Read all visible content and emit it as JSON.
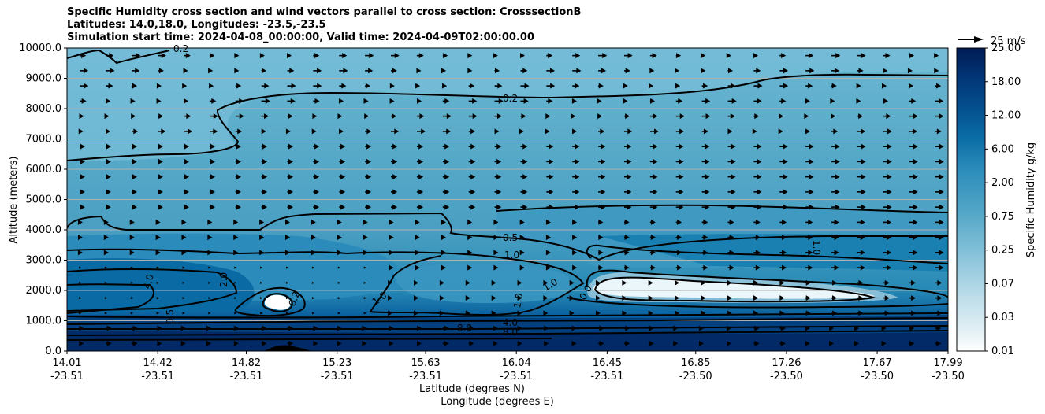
{
  "title": {
    "line1": "Specific Humidity cross section and wind vectors parallel to cross section: CrosssectionB",
    "line2": "Latitudes: 14.0,18.0, Longitudes: -23.5,-23.5",
    "line3": "Simulation start time: 2024-04-08_00:00:00, Valid time: 2024-04-09T02:00:00.00"
  },
  "colors": {
    "light": "#e6f2f6",
    "mid": "#58abc9",
    "deep": "#0079a8",
    "dark": "#002c6e",
    "darkest": "#001a4f",
    "grid": "#b0b0b0"
  },
  "chart_data": {
    "type": "contour",
    "title": "Specific Humidity cross section and wind vectors parallel to cross section: CrosssectionB",
    "xlabel": "Latitude (degrees N)",
    "xlabel2": "Longitude (degrees E)",
    "ylabel": "Altitude (meters)",
    "xlim": [
      14.01,
      17.99
    ],
    "ylim": [
      0,
      10000
    ],
    "x_ticks": [
      {
        "lat": "14.01",
        "lon": "-23.51",
        "value": 14.01
      },
      {
        "lat": "14.42",
        "lon": "-23.51",
        "value": 14.42
      },
      {
        "lat": "14.82",
        "lon": "-23.51",
        "value": 14.82
      },
      {
        "lat": "15.23",
        "lon": "-23.51",
        "value": 15.23
      },
      {
        "lat": "15.63",
        "lon": "-23.51",
        "value": 15.63
      },
      {
        "lat": "16.04",
        "lon": "-23.51",
        "value": 16.04
      },
      {
        "lat": "16.45",
        "lon": "-23.51",
        "value": 16.45
      },
      {
        "lat": "16.85",
        "lon": "-23.50",
        "value": 16.85
      },
      {
        "lat": "17.26",
        "lon": "-23.50",
        "value": 17.26
      },
      {
        "lat": "17.67",
        "lon": "-23.50",
        "value": 17.67
      },
      {
        "lat": "17.99",
        "lon": "-23.50",
        "value": 17.99
      }
    ],
    "y_ticks": [
      "0.0",
      "1000.0",
      "2000.0",
      "3000.0",
      "4000.0",
      "5000.0",
      "6000.0",
      "7000.0",
      "8000.0",
      "9000.0",
      "10000.0"
    ],
    "grid": "horizontal",
    "colorbar": {
      "label": "Specific Humidity g/kg",
      "tick_labels": [
        "0.01",
        "0.03",
        "0.07",
        "0.25",
        "0.75",
        "2.00",
        "6.00",
        "12.00",
        "18.00",
        "25.00"
      ],
      "levels": [
        "0.01",
        "0.02",
        "0.03",
        "0.05",
        "0.07",
        "0.1",
        "0.25",
        "0.5",
        "0.75",
        "1.0",
        "2.00",
        "4.0",
        "6.00",
        "8.0",
        "12.00",
        "15.0",
        "18.00",
        "21.0",
        "25.00"
      ]
    },
    "contour_labels": [
      "0.2",
      "0.5",
      "1.0",
      "1.0",
      "1.0",
      "1.0",
      "1.0",
      "2.0",
      "4.0",
      "4.0",
      "8.0",
      "8.0",
      "0.5",
      "0.0",
      "0.2",
      "0.2"
    ],
    "wind": {
      "reference_label": "25 m/s",
      "reference_speed": 25,
      "direction": "mostly northward (parallel to section)"
    }
  }
}
